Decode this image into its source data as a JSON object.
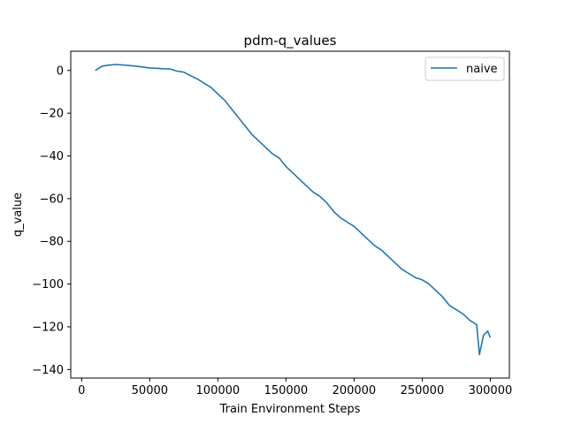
{
  "chart_data": {
    "type": "line",
    "title": "pdm-q_values",
    "xlabel": "Train Environment Steps",
    "ylabel": "q_value",
    "xlim": [
      -8000,
      314000
    ],
    "ylim": [
      -144,
      9
    ],
    "xticks": [
      0,
      50000,
      100000,
      150000,
      200000,
      250000,
      300000
    ],
    "yticks": [
      0,
      -20,
      -40,
      -60,
      -80,
      -100,
      -120,
      -140
    ],
    "legend": "top-right",
    "grid": false,
    "series": [
      {
        "name": "naive",
        "color": "#1f77b4",
        "x": [
          10000,
          15000,
          20000,
          25000,
          30000,
          35000,
          40000,
          45000,
          50000,
          55000,
          60000,
          65000,
          70000,
          75000,
          80000,
          85000,
          90000,
          95000,
          100000,
          105000,
          110000,
          115000,
          120000,
          125000,
          130000,
          135000,
          140000,
          145000,
          150000,
          155000,
          160000,
          165000,
          170000,
          175000,
          180000,
          185000,
          190000,
          195000,
          200000,
          205000,
          210000,
          215000,
          220000,
          225000,
          230000,
          235000,
          240000,
          245000,
          250000,
          255000,
          260000,
          265000,
          270000,
          275000,
          280000,
          285000,
          290000,
          292000,
          295000,
          298000,
          300000
        ],
        "y": [
          0,
          2,
          2.5,
          2.8,
          2.6,
          2.3,
          2,
          1.6,
          1.2,
          1.0,
          0.8,
          0.7,
          -0.3,
          -0.8,
          -2.5,
          -4,
          -6,
          -8,
          -11,
          -14,
          -18,
          -22,
          -26,
          -30,
          -33,
          -36,
          -39,
          -41,
          -45,
          -48,
          -51,
          -54,
          -57,
          -59,
          -62,
          -66,
          -69,
          -71,
          -73,
          -76,
          -79,
          -82,
          -84,
          -87,
          -90,
          -93,
          -95,
          -97,
          -98,
          -100,
          -103,
          -106,
          -110,
          -112,
          -114,
          -117,
          -119,
          -133,
          -124,
          -122,
          -125
        ]
      }
    ]
  }
}
